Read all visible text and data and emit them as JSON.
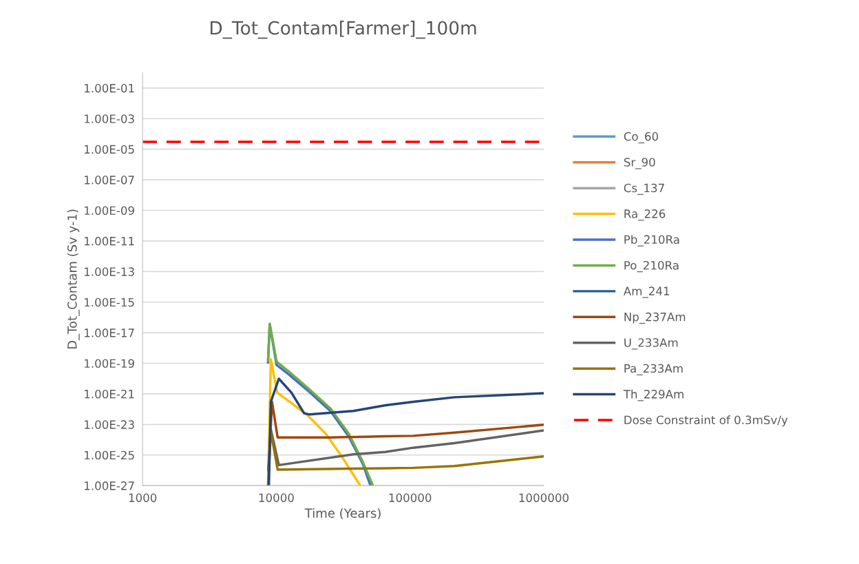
{
  "chart_data": {
    "type": "line",
    "title": "D_Tot_Contam[Farmer]_100m",
    "xlabel": "Time (Years)",
    "ylabel": "D_Tot_Contam (Sv y-1)",
    "log": "xy",
    "grid": "y",
    "legend": "right",
    "marker": "none",
    "line_style": "solid",
    "xlim": [
      1000,
      1000000
    ],
    "xticks": [
      1000,
      10000,
      100000,
      1000000
    ],
    "ylim": [
      1e-27,
      1
    ],
    "yticks": [
      {
        "value": 1e-27,
        "label": "1.00E-27"
      },
      {
        "value": 1e-25,
        "label": "1.00E-25"
      },
      {
        "value": 1e-23,
        "label": "1.00E-23"
      },
      {
        "value": 1e-21,
        "label": "1.00E-21"
      },
      {
        "value": 1e-19,
        "label": "1.00E-19"
      },
      {
        "value": 1e-17,
        "label": "1.00E-17"
      },
      {
        "value": 1e-15,
        "label": "1.00E-15"
      },
      {
        "value": 1e-13,
        "label": "1.00E-13"
      },
      {
        "value": 1e-11,
        "label": "1.00E-11"
      },
      {
        "value": 1e-09,
        "label": "1.00E-09"
      },
      {
        "value": 1e-07,
        "label": "1.00E-07"
      },
      {
        "value": 1e-05,
        "label": "1.00E-05"
      },
      {
        "value": 0.001,
        "label": "1.00E-03"
      },
      {
        "value": 0.1,
        "label": "1.00E-01"
      }
    ],
    "series": [
      {
        "name": "Co_60",
        "color": "#5b9bd5"
      },
      {
        "name": "Sr_90",
        "color": "#ed7d31"
      },
      {
        "name": "Cs_137",
        "color": "#a5a5a5"
      },
      {
        "name": "Ra_226",
        "color": "#ffc000",
        "x": [
          8670,
          9100,
          10160,
          12470,
          17130,
          23500,
          30970,
          42470
        ],
        "values": [
          1e-27,
          1.8e-19,
          1.2e-21,
          3.2e-22,
          4e-23,
          2.4e-24,
          7.6e-26,
          1e-27
        ]
      },
      {
        "name": "Pb_210Ra",
        "color": "#4472c4",
        "x": [
          8670,
          8930,
          10040,
          12470,
          17130,
          25420,
          34860,
          44170,
          50600
        ],
        "values": [
          1.1e-19,
          3.5e-17,
          7.8e-20,
          1.8e-20,
          1.7e-21,
          7.4e-23,
          1.6e-24,
          2.8e-26,
          1e-27
        ]
      },
      {
        "name": "Po_210Ra",
        "color": "#70ad47",
        "x": [
          8670,
          8930,
          10040,
          12470,
          17130,
          25420,
          34860,
          44170,
          52800
        ],
        "values": [
          1.5e-19,
          3.9e-17,
          1.3e-19,
          2.8e-20,
          2.5e-21,
          1.1e-22,
          2.4e-24,
          3.8e-26,
          1e-27
        ]
      },
      {
        "name": "Am_241",
        "color": "#255e91"
      },
      {
        "name": "Np_237Am",
        "color": "#9e480e",
        "x": [
          8750,
          9290,
          10230,
          25420,
          65620,
          105400,
          214200,
          1000000
        ],
        "values": [
          1e-26,
          3e-22,
          1.4e-24,
          1.4e-24,
          1.7e-24,
          1.8e-24,
          2.9e-24,
          9.5e-24
        ]
      },
      {
        "name": "U_233Am",
        "color": "#636363",
        "x": [
          8700,
          9100,
          10450,
          37670,
          65620,
          105400,
          214200,
          1000000
        ],
        "values": [
          1e-26,
          4.8e-24,
          2.2e-26,
          1.1e-25,
          1.6e-25,
          3e-25,
          6e-25,
          4.1e-24
        ]
      },
      {
        "name": "Pa_233Am",
        "color": "#997300",
        "x": [
          8670,
          9100,
          10230,
          37670,
          65620,
          105400,
          214200,
          1000000
        ],
        "values": [
          1e-27,
          3.4e-24,
          1.1e-26,
          1.3e-26,
          1.35e-26,
          1.45e-26,
          1.9e-26,
          8.1e-26
        ]
      },
      {
        "name": "Th_229Am",
        "color": "#264478",
        "x": [
          8800,
          9100,
          10450,
          12970,
          16140,
          17820,
          37670,
          65620,
          105400,
          214200,
          1000000
        ],
        "values": [
          1e-27,
          3e-22,
          9.8e-21,
          1.2e-21,
          5.4e-23,
          4.5e-23,
          7.6e-23,
          1.8e-22,
          3e-22,
          6e-22,
          1.1e-21
        ]
      }
    ],
    "ref_lines": [
      {
        "axis": "y",
        "value": 3e-05,
        "label": "Dose Constraint of 0.3mSv/y",
        "color": "#ff0000",
        "line_style": "dashed"
      }
    ]
  }
}
